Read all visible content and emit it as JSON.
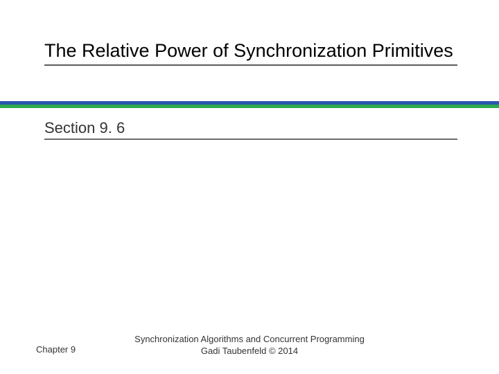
{
  "title": "The Relative Power of Synchronization Primitives",
  "section": "Section 9. 6",
  "footer": {
    "chapter": "Chapter 9",
    "book_title": "Synchronization Algorithms and Concurrent Programming",
    "author_line": "Gadi Taubenfeld © 2014"
  },
  "colors": {
    "stripe_blue": "#2b56b0",
    "stripe_green": "#2fa84f",
    "title_text": "#000000",
    "underline": "#5b5b5b",
    "body_text": "#333333",
    "background": "#ffffff"
  },
  "typography": {
    "title_fontsize": 27,
    "section_fontsize": 22,
    "footer_fontsize": 13,
    "font_family": "Comic Sans MS"
  }
}
